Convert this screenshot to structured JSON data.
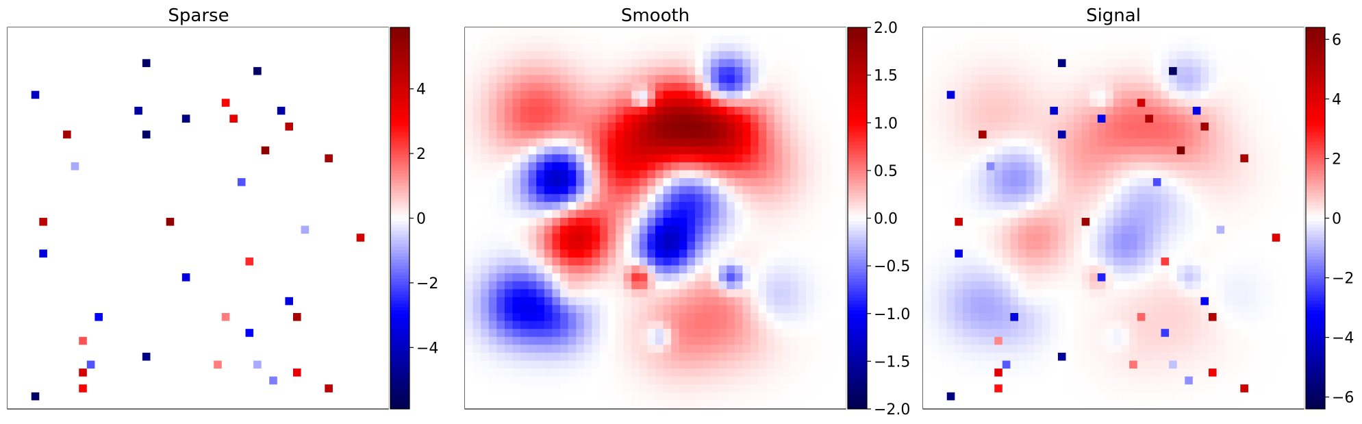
{
  "chart_data": [
    {
      "type": "heatmap",
      "title": "Sparse",
      "colormap": "seismic",
      "vmin": -5.9,
      "vmax": 5.9,
      "colorbar_ticks": [
        4,
        2,
        0,
        -2,
        -4
      ],
      "colorbar_labels": [
        "4",
        "2",
        "0",
        "−2",
        "−4"
      ],
      "grid_size": 48,
      "spikes": [
        [
          3.5,
          8.0,
          -4.0
        ],
        [
          17.0,
          4.0,
          -5.5
        ],
        [
          31.5,
          5.0,
          -5.5
        ],
        [
          16.5,
          10.0,
          -4.5
        ],
        [
          22.5,
          11.5,
          -5.0
        ],
        [
          34.0,
          10.5,
          -4.5
        ],
        [
          27.0,
          9.0,
          3.0
        ],
        [
          28.0,
          11.0,
          3.5
        ],
        [
          35.0,
          12.5,
          4.5
        ],
        [
          7.5,
          13.5,
          5.0
        ],
        [
          17.0,
          13.5,
          -5.5
        ],
        [
          32.0,
          15.5,
          5.5
        ],
        [
          40.0,
          16.5,
          5.0
        ],
        [
          8.0,
          17.5,
          -1.0
        ],
        [
          29.5,
          19.5,
          -2.0
        ],
        [
          4.5,
          24.5,
          4.5
        ],
        [
          20.5,
          24.5,
          5.5
        ],
        [
          37.5,
          25.0,
          -1.0
        ],
        [
          44.5,
          26.5,
          4.0
        ],
        [
          4.5,
          28.0,
          -3.5
        ],
        [
          30.5,
          29.5,
          2.5
        ],
        [
          22.5,
          31.0,
          -3.5
        ],
        [
          35.0,
          34.5,
          -3.5
        ],
        [
          11.0,
          36.0,
          -3.0
        ],
        [
          27.0,
          36.5,
          1.5
        ],
        [
          36.5,
          36.5,
          5.0
        ],
        [
          30.0,
          38.5,
          -3.0
        ],
        [
          9.0,
          39.5,
          2.0
        ],
        [
          17.5,
          41.0,
          -5.0
        ],
        [
          10.5,
          42.0,
          -2.0
        ],
        [
          26.0,
          42.0,
          1.5
        ],
        [
          31.0,
          42.0,
          -1.0
        ],
        [
          9.0,
          43.0,
          4.0
        ],
        [
          36.5,
          43.0,
          3.5
        ],
        [
          33.0,
          44.5,
          -1.5
        ],
        [
          9.0,
          45.0,
          3.0
        ],
        [
          3.5,
          46.0,
          -5.5
        ],
        [
          40.5,
          45.5,
          4.5
        ]
      ]
    },
    {
      "type": "heatmap",
      "title": "Smooth",
      "colormap": "seismic",
      "vmin": -2.0,
      "vmax": 2.0,
      "colorbar_ticks": [
        2.0,
        1.5,
        1.0,
        0.5,
        0.0,
        -0.5,
        -1.0,
        -1.5,
        -2.0
      ],
      "colorbar_labels": [
        "2.0",
        "1.5",
        "1.0",
        "0.5",
        "0.0",
        "−0.5",
        "−1.0",
        "−1.5",
        "−2.0"
      ],
      "grid_size": 48,
      "blobs": [
        [
          12.0,
          19.0,
          3.0,
          -1.6
        ],
        [
          33.0,
          7.0,
          2.2,
          -1.3
        ],
        [
          31.5,
          13.0,
          4.0,
          1.6
        ],
        [
          25.0,
          12.0,
          3.5,
          1.1
        ],
        [
          20.0,
          17.0,
          4.5,
          1.0
        ],
        [
          9.0,
          11.0,
          4.0,
          0.7
        ],
        [
          28.0,
          21.5,
          3.5,
          -1.0
        ],
        [
          14.0,
          26.5,
          3.0,
          1.3
        ],
        [
          25.5,
          27.5,
          2.5,
          -1.2
        ],
        [
          7.0,
          35.0,
          3.2,
          -1.0
        ],
        [
          12.0,
          37.0,
          2.8,
          -0.5
        ],
        [
          34.0,
          35.5,
          4.5,
          0.45
        ],
        [
          27.0,
          38.5,
          4.0,
          0.35
        ],
        [
          38.5,
          34.0,
          3.0,
          -0.4
        ],
        [
          33.5,
          31.5,
          1.2,
          -0.9
        ],
        [
          22.0,
          31.5,
          1.1,
          0.9
        ],
        [
          22.5,
          9.0,
          1.0,
          -0.9
        ],
        [
          24.5,
          39.0,
          1.1,
          -0.5
        ],
        [
          13.0,
          33.5,
          1.5,
          0.3
        ],
        [
          38.0,
          18.0,
          3.5,
          0.3
        ]
      ]
    },
    {
      "type": "heatmap",
      "title": "Signal",
      "colormap": "seismic",
      "vmin": -6.4,
      "vmax": 6.4,
      "colorbar_ticks": [
        6,
        4,
        2,
        0,
        -2,
        -4,
        -6
      ],
      "colorbar_labels": [
        "6",
        "4",
        "2",
        "0",
        "−2",
        "−4",
        "−6"
      ],
      "grid_size": 48,
      "note_components": [
        "Sparse",
        "Smooth"
      ]
    }
  ]
}
